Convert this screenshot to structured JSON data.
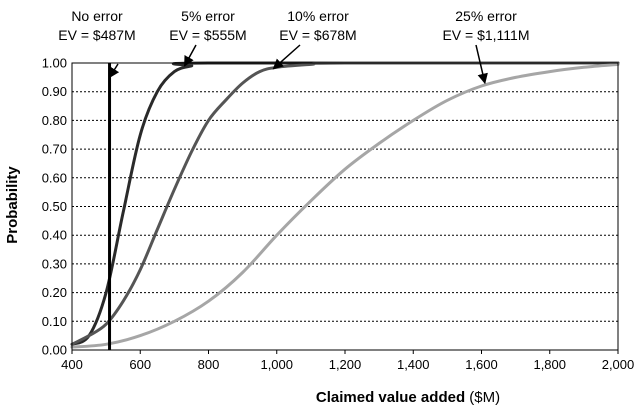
{
  "chart_data": {
    "type": "line",
    "xlabel": "Claimed value added",
    "xlabel_unit": "($M)",
    "ylabel": "Probability",
    "xlim": [
      400,
      2000
    ],
    "ylim": [
      0,
      1
    ],
    "x_ticks": [
      "400",
      "600",
      "800",
      "1,000",
      "1,200",
      "1,400",
      "1,600",
      "1,800",
      "2,000"
    ],
    "y_ticks": [
      "0.00",
      "0.10",
      "0.20",
      "0.30",
      "0.40",
      "0.50",
      "0.60",
      "0.70",
      "0.80",
      "0.90",
      "1.00"
    ],
    "grid": "horizontal dotted",
    "vertical_marker": {
      "x": 510
    },
    "series": [
      {
        "color": "#2a2a2a",
        "points": [
          [
            400,
            0.02
          ],
          [
            450,
            0.05
          ],
          [
            500,
            0.2
          ],
          [
            550,
            0.48
          ],
          [
            600,
            0.75
          ],
          [
            650,
            0.9
          ],
          [
            700,
            0.97
          ],
          [
            750,
            0.99
          ],
          [
            800,
            1.0
          ],
          [
            2000,
            1.0
          ]
        ]
      },
      {
        "color": "#555555",
        "points": [
          [
            400,
            0.02
          ],
          [
            450,
            0.05
          ],
          [
            500,
            0.09
          ],
          [
            550,
            0.17
          ],
          [
            600,
            0.28
          ],
          [
            650,
            0.42
          ],
          [
            700,
            0.56
          ],
          [
            750,
            0.69
          ],
          [
            800,
            0.8
          ],
          [
            850,
            0.87
          ],
          [
            900,
            0.93
          ],
          [
            950,
            0.97
          ],
          [
            1000,
            0.985
          ],
          [
            1100,
            0.995
          ],
          [
            1200,
            1.0
          ],
          [
            2000,
            1.0
          ]
        ]
      },
      {
        "color": "#a6a6a6",
        "points": [
          [
            400,
            0.01
          ],
          [
            500,
            0.02
          ],
          [
            600,
            0.05
          ],
          [
            700,
            0.1
          ],
          [
            800,
            0.17
          ],
          [
            900,
            0.27
          ],
          [
            1000,
            0.4
          ],
          [
            1100,
            0.52
          ],
          [
            1200,
            0.63
          ],
          [
            1300,
            0.72
          ],
          [
            1400,
            0.8
          ],
          [
            1500,
            0.87
          ],
          [
            1600,
            0.92
          ],
          [
            1700,
            0.95
          ],
          [
            1800,
            0.97
          ],
          [
            1900,
            0.985
          ],
          [
            2000,
            0.995
          ]
        ]
      }
    ],
    "annotations": [
      {
        "line1": "No error",
        "line2": "EV = $487M",
        "target": [
          510,
          0.95
        ]
      },
      {
        "line1": "5% error",
        "line2": "EV = $555M",
        "target": [
          730,
          0.99
        ]
      },
      {
        "line1": "10% error",
        "line2": "EV = $678M",
        "target": [
          990,
          0.98
        ]
      },
      {
        "line1": "25% error",
        "line2": "EV = $1,111M",
        "target": [
          1610,
          0.93
        ]
      }
    ]
  }
}
